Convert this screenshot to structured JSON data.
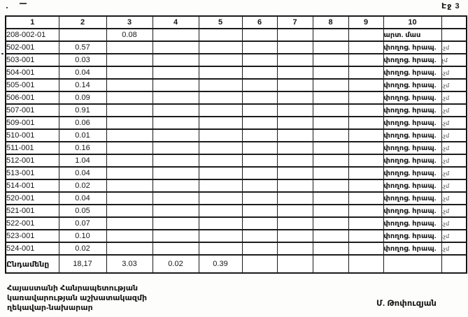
{
  "page": {
    "label": "Էջ 3"
  },
  "table": {
    "headers": [
      "1",
      "2",
      "3",
      "4",
      "5",
      "6",
      "7",
      "8",
      "9",
      "10"
    ],
    "rows": [
      {
        "c1": "208-002-01",
        "c2": "",
        "c3": "0.08",
        "c10": "արտ. մաս",
        "note": ""
      },
      {
        "c1": "502-001",
        "c2": "0.57",
        "c3": "",
        "c10": "փողոց. հրապ.",
        "note": ".չմ"
      },
      {
        "c1": "503-001",
        "c2": "0.03",
        "c3": "",
        "c10": "փողոց. հրապ.",
        "note": "չմ"
      },
      {
        "c1": "504-001",
        "c2": "0.04",
        "c3": "",
        "c10": "փողոց. հրապ.",
        "note": ".չմ"
      },
      {
        "c1": "505-001",
        "c2": "0.14",
        "c3": "",
        "c10": "փողոց. հրապ.",
        "note": ".չմ"
      },
      {
        "c1": "506-001",
        "c2": "0.09",
        "c3": "",
        "c10": "փողոց. հրապ.",
        "note": ".չմ"
      },
      {
        "c1": "507-001",
        "c2": "0.91",
        "c3": "",
        "c10": "փողոց. հրապ.",
        "note": ".չմ"
      },
      {
        "c1": "509-001",
        "c2": "0.06",
        "c3": "",
        "c10": "փողոց. հրապ.",
        "note": ".չմ"
      },
      {
        "c1": "510-001",
        "c2": "0.01",
        "c3": "",
        "c10": "փողոց. հրապ.",
        "note": ".չմ"
      },
      {
        "c1": "511-001",
        "c2": "0.16",
        "c3": "",
        "c10": "փողոց. հրապ.",
        "note": ".չմ"
      },
      {
        "c1": "512-001",
        "c2": "1.04",
        "c3": "",
        "c10": "փողոց. հրապ.",
        "note": ".չմ"
      },
      {
        "c1": "513-001",
        "c2": "0.04",
        "c3": "",
        "c10": "փողոց. հրապ.",
        "note": ".չմ"
      },
      {
        "c1": "514-001",
        "c2": "0.02",
        "c3": "",
        "c10": "փողոց. հրապ.",
        "note": ".չմ"
      },
      {
        "c1": "520-001",
        "c2": "0.04",
        "c3": "",
        "c10": "փողոց. հրապ.",
        "note": ".չմ"
      },
      {
        "c1": "521-001",
        "c2": "0.05",
        "c3": "",
        "c10": "փողոց. հրապ.",
        "note": ".չմ"
      },
      {
        "c1": "522-001",
        "c2": "0.07",
        "c3": "",
        "c10": "փողոց. հրապ.",
        "note": ".չմ"
      },
      {
        "c1": "523-001",
        "c2": "0.10",
        "c3": "",
        "c10": "փողոց. հրապ.",
        "note": ".չմ"
      },
      {
        "c1": "524-001",
        "c2": "0.02",
        "c3": "",
        "c10": "փողոց. հրապ.",
        "note": ".չմ"
      }
    ],
    "total": {
      "label": "Ընդամենը",
      "c2": "18,17",
      "c3": "3.03",
      "c4": "0.02",
      "c5": "0.39"
    }
  },
  "footer": {
    "lines": [
      "Հայաստանի Հանրապետության",
      "կառավարության աշխատակազմի",
      "ղեկավար-նախարար"
    ],
    "signature": "Մ. Թոփուզյան"
  }
}
